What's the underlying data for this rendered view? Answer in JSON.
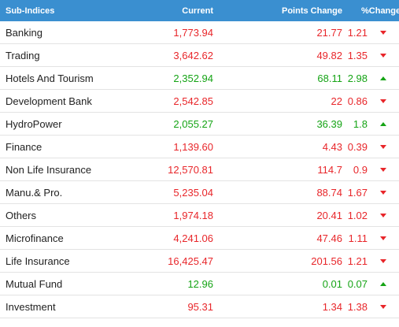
{
  "header": {
    "name": "Sub-Indices",
    "current": "Current",
    "points_change": "Points Change",
    "pct_change": "%Change"
  },
  "colors": {
    "header_bg": "#3a8fd0",
    "down": "#e8262a",
    "up": "#15a415"
  },
  "rows": [
    {
      "name": "Banking",
      "current": "1,773.94",
      "points": "21.77",
      "pct": "1.21",
      "dir": "down"
    },
    {
      "name": "Trading",
      "current": "3,642.62",
      "points": "49.82",
      "pct": "1.35",
      "dir": "down"
    },
    {
      "name": "Hotels And Tourism",
      "current": "2,352.94",
      "points": "68.11",
      "pct": "2.98",
      "dir": "up"
    },
    {
      "name": "Development Bank",
      "current": "2,542.85",
      "points": "22",
      "pct": "0.86",
      "dir": "down"
    },
    {
      "name": "HydroPower",
      "current": "2,055.27",
      "points": "36.39",
      "pct": "1.8",
      "dir": "up"
    },
    {
      "name": "Finance",
      "current": "1,139.60",
      "points": "4.43",
      "pct": "0.39",
      "dir": "down"
    },
    {
      "name": "Non Life Insurance",
      "current": "12,570.81",
      "points": "114.7",
      "pct": "0.9",
      "dir": "down"
    },
    {
      "name": "Manu.& Pro.",
      "current": "5,235.04",
      "points": "88.74",
      "pct": "1.67",
      "dir": "down"
    },
    {
      "name": "Others",
      "current": "1,974.18",
      "points": "20.41",
      "pct": "1.02",
      "dir": "down"
    },
    {
      "name": "Microfinance",
      "current": "4,241.06",
      "points": "47.46",
      "pct": "1.11",
      "dir": "down"
    },
    {
      "name": "Life Insurance",
      "current": "16,425.47",
      "points": "201.56",
      "pct": "1.21",
      "dir": "down"
    },
    {
      "name": "Mutual Fund",
      "current": "12.96",
      "points": "0.01",
      "pct": "0.07",
      "dir": "up"
    },
    {
      "name": "Investment",
      "current": "95.31",
      "points": "1.34",
      "pct": "1.38",
      "dir": "down"
    }
  ]
}
